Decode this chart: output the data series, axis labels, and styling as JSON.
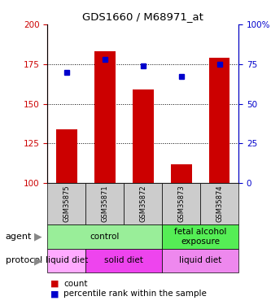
{
  "title": "GDS1660 / M68971_at",
  "samples": [
    "GSM35875",
    "GSM35871",
    "GSM35872",
    "GSM35873",
    "GSM35874"
  ],
  "counts": [
    134,
    183,
    159,
    112,
    179
  ],
  "percentiles": [
    70,
    78,
    74,
    67,
    75
  ],
  "ylim_left": [
    100,
    200
  ],
  "ylim_right": [
    0,
    100
  ],
  "bar_color": "#cc0000",
  "dot_color": "#0000cc",
  "grid_vals": [
    125,
    150,
    175
  ],
  "yticks_left": [
    100,
    125,
    150,
    175,
    200
  ],
  "yticks_right": [
    0,
    25,
    50,
    75,
    100
  ],
  "agent_groups": [
    {
      "label": "control",
      "span": [
        0,
        3
      ],
      "color": "#99ee99"
    },
    {
      "label": "fetal alcohol\nexposure",
      "span": [
        3,
        5
      ],
      "color": "#55ee55"
    }
  ],
  "protocol_groups": [
    {
      "label": "liquid diet",
      "span": [
        0,
        1
      ],
      "color": "#ffaaff"
    },
    {
      "label": "solid diet",
      "span": [
        1,
        3
      ],
      "color": "#ee44ee"
    },
    {
      "label": "liquid diet",
      "span": [
        3,
        5
      ],
      "color": "#ee88ee"
    }
  ],
  "label_agent": "agent",
  "label_protocol": "protocol",
  "legend_count": "count",
  "legend_pct": "percentile rank within the sample",
  "tick_color_left": "#cc0000",
  "tick_color_right": "#0000cc",
  "sample_bg": "#cccccc",
  "bar_width": 0.55
}
